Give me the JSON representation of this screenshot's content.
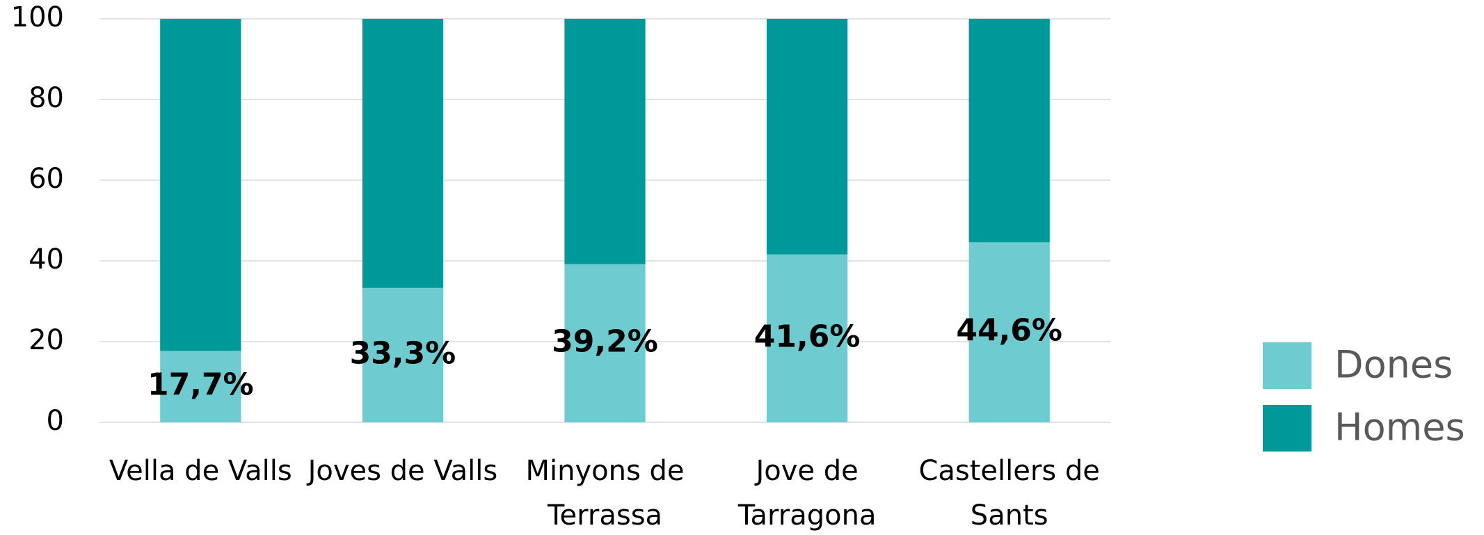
{
  "chart_data": {
    "type": "stacked_bar",
    "categories": [
      "Vella de Valls",
      "Joves de Valls",
      "Minyons de Terrassa",
      "Jove de Tarragona",
      "Castellers de Sants"
    ],
    "series": [
      {
        "name": "Dones",
        "color": "#6ecbd0",
        "values": [
          17.7,
          33.3,
          39.2,
          41.6,
          44.6
        ],
        "value_labels": [
          "17,7%",
          "33,3%",
          "39,2%",
          "41,6%",
          "44,6%"
        ]
      },
      {
        "name": "Homes",
        "color": "#009999",
        "values": [
          82.3,
          66.7,
          60.8,
          58.4,
          55.4
        ]
      }
    ],
    "ylim": [
      0,
      100
    ],
    "yticks": [
      0,
      20,
      40,
      60,
      80,
      100
    ],
    "grid": true,
    "legend": "right"
  }
}
